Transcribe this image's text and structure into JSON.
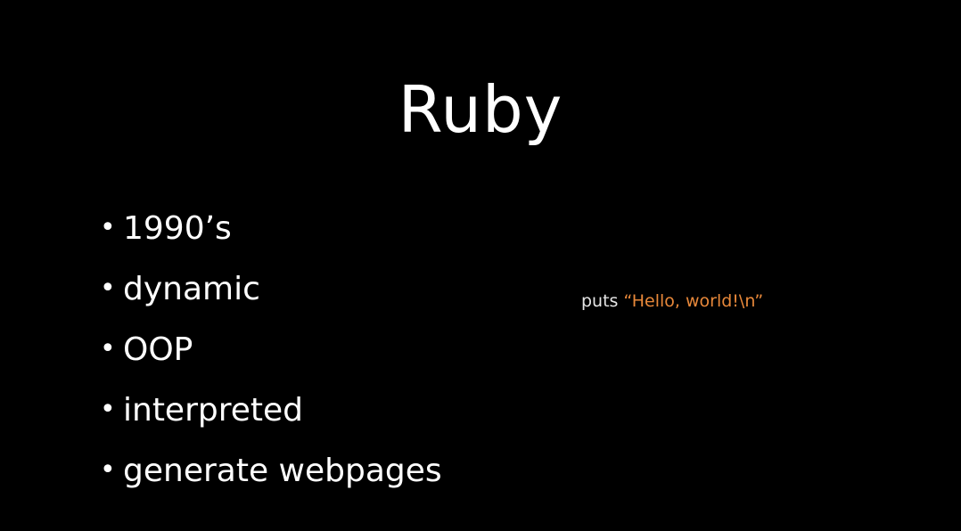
{
  "slide": {
    "title": "Ruby",
    "bullets": [
      {
        "text": "1990’s"
      },
      {
        "text": "dynamic"
      },
      {
        "text": "OOP"
      },
      {
        "text": "interpreted"
      },
      {
        "text": "generate webpages"
      }
    ],
    "bullet_glyph": "•",
    "code": {
      "keyword": "puts",
      "space": " ",
      "string": "“Hello, world!\\n”"
    }
  },
  "colors": {
    "background": "#000000",
    "text": "#ffffff",
    "code_keyword": "#e6e6e6",
    "code_string": "#e8883a"
  }
}
